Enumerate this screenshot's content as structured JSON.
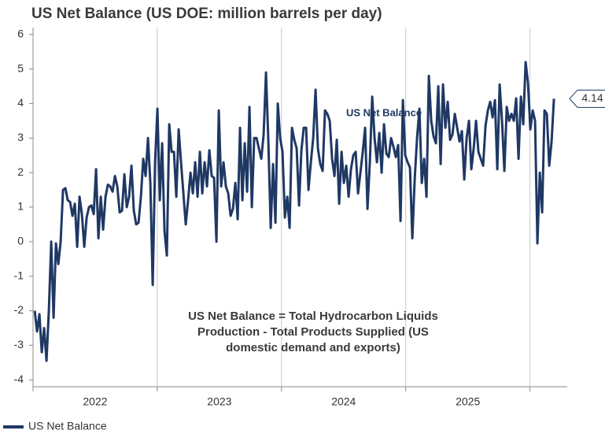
{
  "chart_data": {
    "type": "line",
    "title": "US Net Balance (US DOE: million barrels per day)",
    "series": [
      {
        "name": "US Net Balance",
        "color": "#1f3864",
        "values": [
          -2.0,
          -2.6,
          -2.1,
          -3.2,
          -2.5,
          -3.45,
          -2.0,
          0.0,
          -2.2,
          -0.05,
          -0.65,
          0.0,
          1.5,
          1.55,
          1.2,
          1.15,
          0.75,
          1.1,
          -0.15,
          1.3,
          0.8,
          -0.15,
          0.7,
          1.0,
          1.05,
          0.8,
          2.1,
          0.1,
          1.3,
          0.35,
          1.3,
          1.65,
          1.6,
          1.45,
          1.9,
          1.6,
          0.85,
          0.9,
          1.95,
          1.0,
          1.3,
          2.2,
          0.9,
          0.5,
          0.55,
          1.3,
          2.4,
          1.9,
          3.0,
          1.7,
          -1.25,
          2.3,
          3.85,
          1.2,
          2.85,
          0.3,
          -0.4,
          3.4,
          2.6,
          2.6,
          1.3,
          3.25,
          2.3,
          1.4,
          0.5,
          1.2,
          2.0,
          1.4,
          2.3,
          1.3,
          2.6,
          1.4,
          2.3,
          1.6,
          2.65,
          1.9,
          1.85,
          0.0,
          3.8,
          1.6,
          2.3,
          1.6,
          1.4,
          0.75,
          0.95,
          1.7,
          0.65,
          3.3,
          1.2,
          2.85,
          1.45,
          3.9,
          1.0,
          3.0,
          3.0,
          2.7,
          2.4,
          3.1,
          4.9,
          2.9,
          0.4,
          2.25,
          0.55,
          4.0,
          3.0,
          2.6,
          0.7,
          1.3,
          0.4,
          3.3,
          2.95,
          2.7,
          1.05,
          2.65,
          3.3,
          3.3,
          1.5,
          2.3,
          3.0,
          4.4,
          2.7,
          2.25,
          2.05,
          3.8,
          3.7,
          3.5,
          2.4,
          1.9,
          2.95,
          1.1,
          2.6,
          1.7,
          2.2,
          1.3,
          2.1,
          2.5,
          2.6,
          1.4,
          2.0,
          2.6,
          3.3,
          0.95,
          2.3,
          4.2,
          3.0,
          2.3,
          3.15,
          2.0,
          3.4,
          2.55,
          2.45,
          3.0,
          2.75,
          2.45,
          2.8,
          0.6,
          4.1,
          2.5,
          2.3,
          2.15,
          0.1,
          1.8,
          3.0,
          3.85,
          1.7,
          2.4,
          1.3,
          4.8,
          3.5,
          3.05,
          2.85,
          4.5,
          2.25,
          4.55,
          3.3,
          4.05,
          2.95,
          3.1,
          3.7,
          3.3,
          2.9,
          3.2,
          1.8,
          3.0,
          3.5,
          2.1,
          2.7,
          3.5,
          2.6,
          2.4,
          2.2,
          3.35,
          3.8,
          4.05,
          3.6,
          4.1,
          2.1,
          4.55,
          3.5,
          2.05,
          3.9,
          3.5,
          3.7,
          3.5,
          4.15,
          2.4,
          4.2,
          3.4,
          5.2,
          4.6,
          3.25,
          3.8,
          3.5,
          -0.05,
          2.0,
          0.85,
          3.8,
          3.7,
          2.2,
          2.9,
          4.14
        ]
      }
    ],
    "x": [
      2022.013,
      2022.032,
      2022.051,
      2022.07,
      2022.089,
      2022.108,
      2022.127,
      2022.146,
      2022.165,
      2022.184,
      2022.203,
      2022.222,
      2022.241,
      2022.26,
      2022.279,
      2022.298,
      2022.317,
      2022.336,
      2022.355,
      2022.374,
      2022.393,
      2022.412,
      2022.431,
      2022.45,
      2022.469,
      2022.488,
      2022.507,
      2022.526,
      2022.545,
      2022.564,
      2022.583,
      2022.602,
      2022.621,
      2022.64,
      2022.659,
      2022.678,
      2022.697,
      2022.716,
      2022.735,
      2022.754,
      2022.773,
      2022.792,
      2022.811,
      2022.83,
      2022.849,
      2022.868,
      2022.887,
      2022.906,
      2022.925,
      2022.944,
      2022.963,
      2022.982,
      2023.001,
      2023.02,
      2023.039,
      2023.058,
      2023.077,
      2023.096,
      2023.115,
      2023.134,
      2023.153,
      2023.172,
      2023.191,
      2023.21,
      2023.229,
      2023.248,
      2023.267,
      2023.286,
      2023.305,
      2023.324,
      2023.343,
      2023.362,
      2023.381,
      2023.4,
      2023.419,
      2023.438,
      2023.457,
      2023.476,
      2023.495,
      2023.514,
      2023.533,
      2023.552,
      2023.571,
      2023.59,
      2023.609,
      2023.628,
      2023.647,
      2023.666,
      2023.685,
      2023.704,
      2023.723,
      2023.742,
      2023.761,
      2023.78,
      2023.799,
      2023.818,
      2023.837,
      2023.856,
      2023.875,
      2023.894,
      2023.913,
      2023.932,
      2023.951,
      2023.97,
      2023.989,
      2024.008,
      2024.027,
      2024.046,
      2024.065,
      2024.084,
      2024.103,
      2024.122,
      2024.141,
      2024.16,
      2024.179,
      2024.198,
      2024.217,
      2024.236,
      2024.255,
      2024.274,
      2024.293,
      2024.312,
      2024.331,
      2024.35,
      2024.369,
      2024.388,
      2024.407,
      2024.426,
      2024.445,
      2024.464,
      2024.483,
      2024.502,
      2024.521,
      2024.54,
      2024.559,
      2024.578,
      2024.597,
      2024.616,
      2024.635,
      2024.654,
      2024.673,
      2024.692,
      2024.711,
      2024.73,
      2024.749,
      2024.768,
      2024.787,
      2024.806,
      2024.825,
      2024.844,
      2024.863,
      2024.882,
      2024.901,
      2024.92,
      2024.939,
      2024.958,
      2024.977,
      2024.996,
      2025.015,
      2025.034,
      2025.053,
      2025.072,
      2025.091,
      2025.11,
      2025.129,
      2025.148,
      2025.167,
      2025.186,
      2025.205,
      2025.224,
      2025.243,
      2025.262,
      2025.281,
      2025.3,
      2025.319,
      2025.338,
      2025.357,
      2025.376,
      2025.395,
      2025.414,
      2025.433,
      2025.452,
      2025.471,
      2025.49,
      2025.509,
      2025.528,
      2025.547,
      2025.566,
      2025.585,
      2025.604,
      2025.623,
      2025.642,
      2025.661,
      2025.68,
      2025.699,
      2025.718,
      2025.737,
      2025.756,
      2025.775,
      2025.794,
      2025.813,
      2025.832,
      2025.851,
      2025.87,
      2025.889,
      2025.908,
      2025.927,
      2025.946,
      2025.965,
      2025.984,
      2026.003,
      2026.022,
      2026.041,
      2026.06,
      2026.079,
      2026.098,
      2026.117,
      2026.136,
      2026.155,
      2026.174,
      2026.193
    ],
    "xlim": [
      2022,
      2026.3
    ],
    "xticks": [
      {
        "value": 2022.5,
        "label": "2022"
      },
      {
        "value": 2023.5,
        "label": "2023"
      },
      {
        "value": 2024.5,
        "label": "2024"
      },
      {
        "value": 2025.5,
        "label": "2025"
      }
    ],
    "xgridlines": [
      2022,
      2023,
      2024,
      2025,
      2026
    ],
    "ylim": [
      -4.2,
      6.2
    ],
    "yticks": [
      -4,
      -3,
      -2,
      -1,
      0,
      1,
      2,
      3,
      4,
      5,
      6
    ],
    "annotations": [
      "US Net Balance",
      "US Net Balance = Total Hydrocarbon Liquids",
      "Production - Total Products Supplied (US",
      "domestic demand and exports)"
    ],
    "legend": "bottom-left"
  }
}
